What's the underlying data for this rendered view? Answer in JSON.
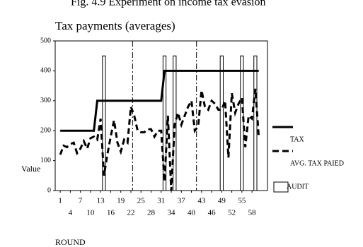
{
  "chart_data": {
    "type": "line",
    "title": "Fig. 4.9 Experiment on income tax evasion",
    "subtitle": "Tax payments (averages)",
    "y_label": "Value",
    "x_label": "ROUND",
    "x": [
      1,
      2,
      3,
      4,
      5,
      6,
      7,
      8,
      9,
      10,
      11,
      12,
      13,
      14,
      15,
      16,
      17,
      18,
      19,
      20,
      21,
      22,
      23,
      24,
      25,
      26,
      27,
      28,
      29,
      30,
      31,
      32,
      33,
      34,
      35,
      36,
      37,
      38,
      39,
      40,
      41,
      42,
      43,
      44,
      45,
      46,
      47,
      48,
      49,
      50,
      51,
      52,
      53,
      54,
      55,
      56,
      57,
      58,
      59,
      60
    ],
    "series": [
      {
        "name": "TAX",
        "color": "#000000",
        "style": "solid",
        "values": [
          200,
          200,
          200,
          200,
          200,
          200,
          200,
          200,
          200,
          200,
          200,
          300,
          300,
          300,
          300,
          300,
          300,
          300,
          300,
          300,
          300,
          300,
          300,
          300,
          300,
          300,
          300,
          300,
          300,
          300,
          300,
          400,
          400,
          400,
          400,
          400,
          400,
          400,
          400,
          400,
          400,
          400,
          400,
          400,
          400,
          400,
          400,
          400,
          400,
          400,
          400,
          400,
          400,
          400,
          400,
          400,
          400,
          400,
          400,
          400
        ]
      },
      {
        "name": "AVG. TAX PAIED",
        "color": "#000000",
        "style": "dashed",
        "values": [
          120,
          150,
          145,
          155,
          160,
          125,
          140,
          165,
          140,
          175,
          180,
          170,
          240,
          50,
          120,
          180,
          235,
          160,
          130,
          170,
          160,
          280,
          250,
          200,
          195,
          195,
          205,
          205,
          180,
          200,
          200,
          30,
          250,
          0,
          220,
          260,
          220,
          250,
          280,
          300,
          200,
          215,
          335,
          280,
          270,
          300,
          290,
          270,
          270,
          300,
          110,
          325,
          260,
          290,
          310,
          145,
          250,
          240,
          340,
          180
        ]
      },
      {
        "name": "AUDIT",
        "color": "#000000",
        "style": "bar",
        "x": [
          14,
          32,
          35,
          49,
          55,
          59
        ],
        "values": [
          450,
          450,
          450,
          450,
          450,
          450
        ]
      }
    ],
    "vlines": [
      22.5,
      41.5
    ],
    "xlim": [
      -0.5,
      62.6
    ],
    "ylim": [
      0,
      500
    ],
    "xticks": [
      1,
      4,
      7,
      10,
      13,
      16,
      19,
      22,
      25,
      28,
      31,
      34,
      37,
      40,
      43,
      46,
      49,
      52,
      55,
      58
    ],
    "yticks": [
      0,
      100,
      200,
      300,
      400,
      500
    ]
  }
}
